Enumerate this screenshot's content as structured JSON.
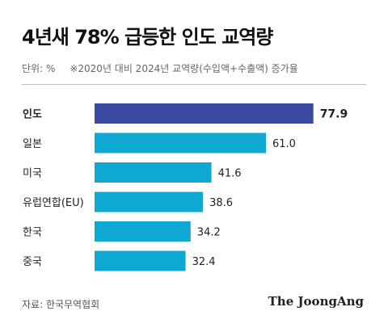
{
  "chart_data": {
    "type": "bar",
    "orientation": "horizontal",
    "title": "4년새 78% 급등한 인도 교역량",
    "unit_label": "단위: %",
    "note": "※2020년 대비 2024년 교역량(수입액+수출액) 증가율",
    "categories": [
      "인도",
      "일본",
      "미국",
      "유럽연합(EU)",
      "한국",
      "중국"
    ],
    "values": [
      77.9,
      61.0,
      41.6,
      38.6,
      34.2,
      32.4
    ],
    "value_labels": [
      "77.9",
      "61.0",
      "41.6",
      "38.6",
      "34.2",
      "32.4"
    ],
    "highlight_index": 0,
    "xlim": [
      0,
      80
    ],
    "grid": false,
    "colors": {
      "highlight": "#3a4aa3",
      "default": "#0fa8d2"
    }
  },
  "footer": {
    "source": "자료: 한국무역협회",
    "brand": "The JoongAng"
  }
}
